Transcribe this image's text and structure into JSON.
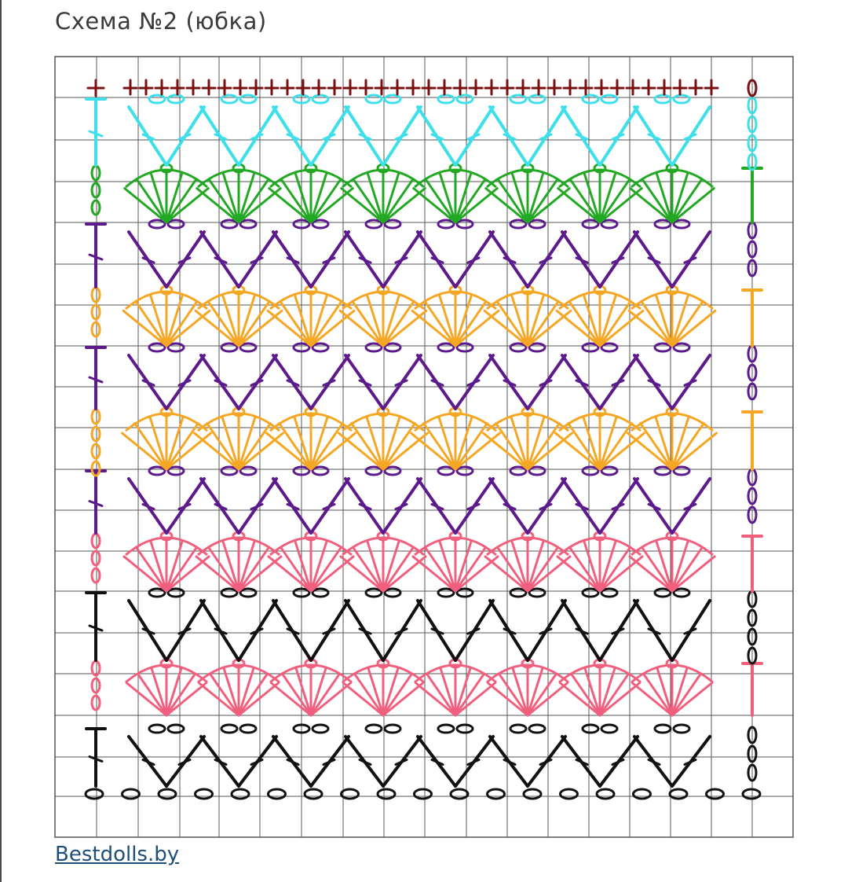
{
  "title": "Схема №2 (юбка)",
  "source_link": "Bestdolls.by",
  "pattern": {
    "repeats_per_row": 8,
    "rows_bottom_to_top": [
      {
        "stitch": "vee",
        "color": "#111111"
      },
      {
        "stitch": "shell",
        "color": "#f0607e"
      },
      {
        "stitch": "vee",
        "color": "#111111"
      },
      {
        "stitch": "shell",
        "color": "#f0607e"
      },
      {
        "stitch": "vee",
        "color": "#5c1a8c"
      },
      {
        "stitch": "shell",
        "color": "#f5a623"
      },
      {
        "stitch": "vee",
        "color": "#5c1a8c"
      },
      {
        "stitch": "shell",
        "color": "#f5a623"
      },
      {
        "stitch": "vee",
        "color": "#5c1a8c"
      },
      {
        "stitch": "shell",
        "color": "#22a822"
      },
      {
        "stitch": "vee",
        "color": "#3de0ea"
      },
      {
        "stitch": "crab",
        "color": "#7a1010"
      }
    ],
    "foundation_color": "#111111",
    "grid_color": "#555555"
  }
}
